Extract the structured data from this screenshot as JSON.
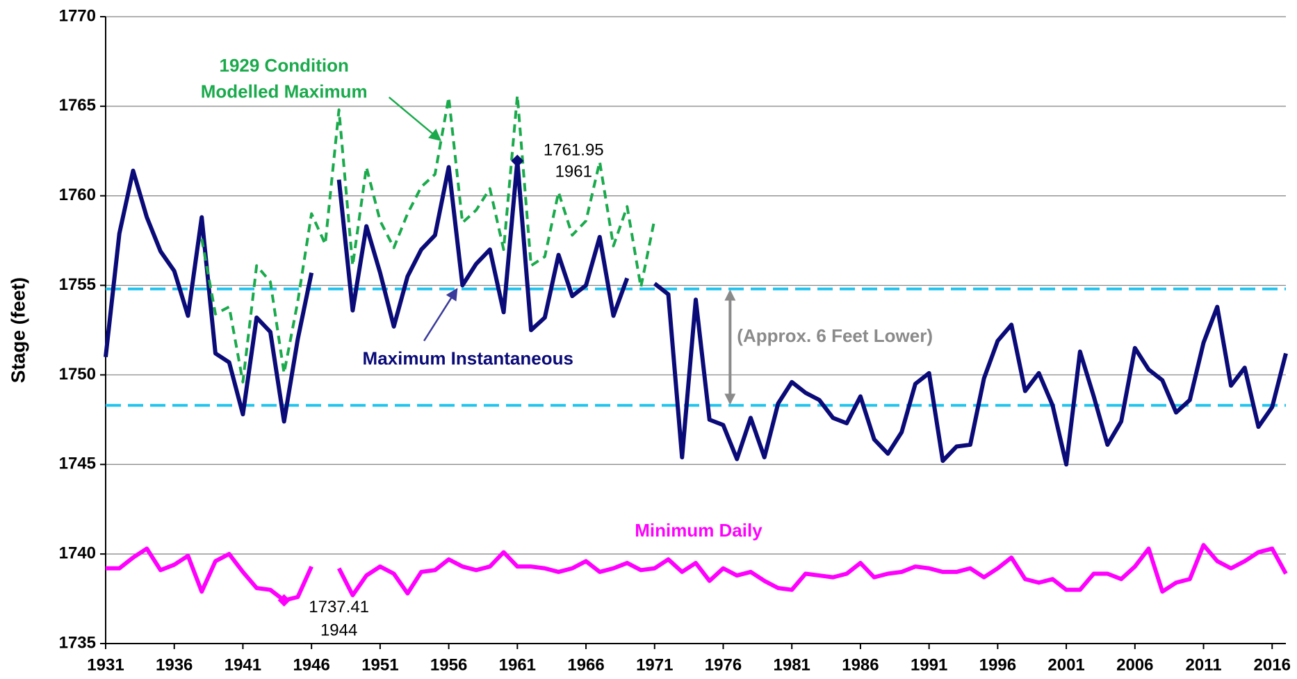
{
  "chart_data": {
    "type": "line",
    "ylabel": "Stage (feet)",
    "xlim": [
      1931,
      2017
    ],
    "ylim": [
      1735,
      1770
    ],
    "xticks": [
      1931,
      1936,
      1941,
      1946,
      1951,
      1956,
      1961,
      1966,
      1971,
      1976,
      1981,
      1986,
      1991,
      1996,
      2001,
      2006,
      2011,
      2016
    ],
    "yticks": [
      1735,
      1740,
      1745,
      1750,
      1755,
      1760,
      1765,
      1770
    ],
    "grid": true,
    "x": [
      1931,
      1932,
      1933,
      1934,
      1935,
      1936,
      1937,
      1938,
      1939,
      1940,
      1941,
      1942,
      1943,
      1944,
      1945,
      1946,
      1947,
      1948,
      1949,
      1950,
      1951,
      1952,
      1953,
      1954,
      1955,
      1956,
      1957,
      1958,
      1959,
      1960,
      1961,
      1962,
      1963,
      1964,
      1965,
      1966,
      1967,
      1968,
      1969,
      1970,
      1971,
      1972,
      1973,
      1974,
      1975,
      1976,
      1977,
      1978,
      1979,
      1980,
      1981,
      1982,
      1983,
      1984,
      1985,
      1986,
      1987,
      1988,
      1989,
      1990,
      1991,
      1992,
      1993,
      1994,
      1995,
      1996,
      1997,
      1998,
      1999,
      2000,
      2001,
      2002,
      2003,
      2004,
      2005,
      2006,
      2007,
      2008,
      2009,
      2010,
      2011,
      2012,
      2013,
      2014,
      2015,
      2016,
      2017
    ],
    "series": [
      {
        "name": "Maximum Instantaneous",
        "color": "#0a0a78",
        "style": "solid",
        "values": [
          1751.0,
          1757.9,
          1761.4,
          1758.8,
          1756.9,
          1755.8,
          1753.3,
          1758.8,
          1751.2,
          1750.7,
          1747.8,
          1753.2,
          1752.4,
          1747.4,
          1752.0,
          1755.7,
          null,
          1760.9,
          1753.6,
          1758.3,
          1755.7,
          1752.7,
          1755.5,
          1757.0,
          1757.8,
          1761.6,
          1755.0,
          1756.2,
          1757.0,
          1753.5,
          1761.95,
          1752.5,
          1753.2,
          1756.7,
          1754.4,
          1755.0,
          1757.7,
          1753.3,
          1755.4,
          null,
          1755.1,
          1754.5,
          1745.4,
          1754.2,
          1747.5,
          1747.2,
          1745.3,
          1747.6,
          1745.4,
          1748.4,
          1749.6,
          1749.0,
          1748.6,
          1747.6,
          1747.3,
          1748.8,
          1746.4,
          1745.6,
          1746.8,
          1749.5,
          1750.1,
          1745.2,
          1746.0,
          1746.1,
          1749.8,
          1751.9,
          1752.8,
          1749.1,
          1750.1,
          1748.3,
          1745.0,
          1751.3,
          1748.8,
          1746.1,
          1747.4,
          1751.5,
          1750.3,
          1749.7,
          1747.9,
          1748.6,
          1751.8,
          1753.8,
          1749.4,
          1750.4,
          1747.1,
          1748.2,
          1751.2
        ]
      },
      {
        "name_lines": [
          "1929 Condition",
          "Modelled Maximum"
        ],
        "color": "#1aaa4c",
        "style": "dashed",
        "values": [
          null,
          null,
          null,
          null,
          null,
          null,
          null,
          1757.6,
          1753.4,
          1753.8,
          1749.6,
          1756.1,
          1755.2,
          1750.1,
          1754.1,
          1759.0,
          1757.3,
          1764.8,
          1756.1,
          1761.6,
          1758.6,
          1757.1,
          1759.0,
          1760.5,
          1761.2,
          1765.5,
          1758.5,
          1759.2,
          1760.4,
          1757.0,
          1765.6,
          1756.1,
          1756.6,
          1760.2,
          1757.8,
          1758.6,
          1761.9,
          1757.2,
          1759.4,
          1754.9,
          1758.7,
          null,
          null,
          null,
          null,
          null,
          null,
          null,
          null,
          null,
          null,
          null,
          null,
          null,
          null,
          null,
          null,
          null,
          null,
          null,
          null,
          null,
          null,
          null,
          null,
          null,
          null,
          null,
          null,
          null,
          null,
          null,
          null,
          null,
          null,
          null,
          null,
          null,
          null,
          null,
          null,
          null,
          null,
          null,
          null,
          null,
          null
        ]
      },
      {
        "name": "Minimum Daily",
        "color": "#ff00ff",
        "style": "solid",
        "values": [
          1739.2,
          1739.2,
          1739.8,
          1740.3,
          1739.1,
          1739.4,
          1739.9,
          1737.9,
          1739.6,
          1740.0,
          1739.0,
          1738.1,
          1738.0,
          1737.41,
          1737.6,
          1739.3,
          null,
          1739.2,
          1737.7,
          1738.8,
          1739.3,
          1738.9,
          1737.8,
          1739.0,
          1739.1,
          1739.7,
          1739.3,
          1739.1,
          1739.3,
          1740.1,
          1739.3,
          1739.3,
          1739.2,
          1739.0,
          1739.2,
          1739.6,
          1739.0,
          1739.2,
          1739.5,
          1739.1,
          1739.2,
          1739.7,
          1739.0,
          1739.5,
          1738.5,
          1739.2,
          1738.8,
          1739.0,
          1738.5,
          1738.1,
          1738.0,
          1738.9,
          1738.8,
          1738.7,
          1738.9,
          1739.5,
          1738.7,
          1738.9,
          1739.0,
          1739.3,
          1739.2,
          1739.0,
          1739.0,
          1739.2,
          1738.7,
          1739.2,
          1739.8,
          1738.6,
          1738.4,
          1738.6,
          1738.0,
          1738.0,
          1738.9,
          1738.9,
          1738.6,
          1739.3,
          1740.3,
          1737.9,
          1738.4,
          1738.6,
          1740.5,
          1739.6,
          1739.2,
          1739.6,
          1740.1,
          1740.3,
          1738.9
        ]
      }
    ],
    "reference_lines": [
      {
        "value": 1754.8,
        "color": "#22c4ee",
        "style": "dashed"
      },
      {
        "value": 1748.3,
        "color": "#22c4ee",
        "style": "dashed"
      }
    ],
    "difference_label": "(Approx. 6 Feet Lower)",
    "annotations": [
      {
        "lines": [
          "1761.95",
          "1961"
        ]
      },
      {
        "lines": [
          "1737.41",
          "1944"
        ]
      }
    ]
  }
}
